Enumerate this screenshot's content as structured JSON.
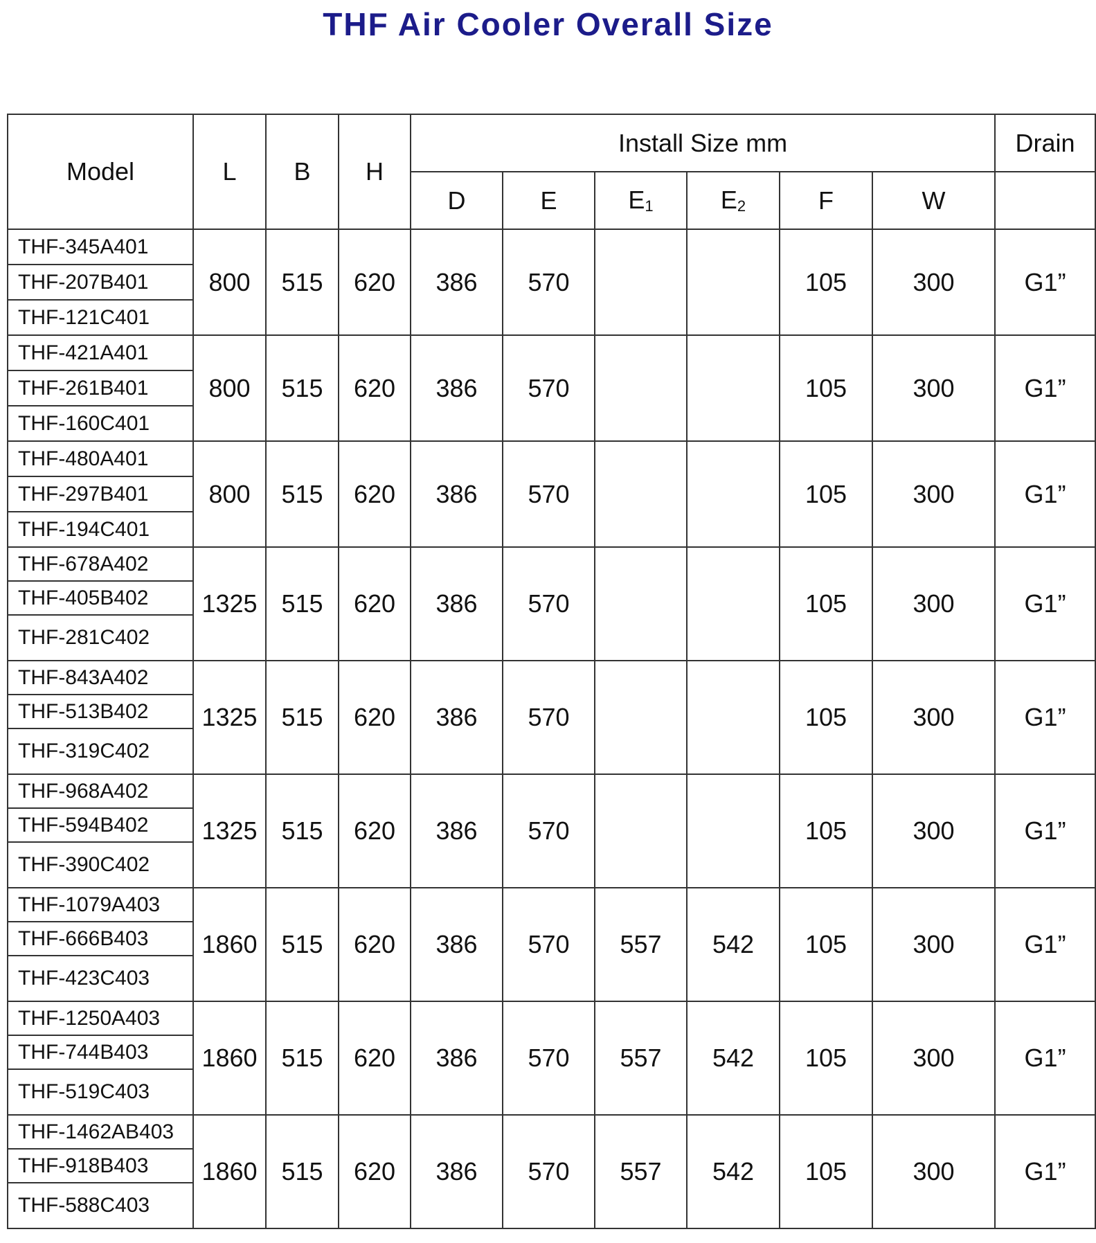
{
  "title": "THF Air Cooler Overall Size",
  "header": {
    "model": "Model",
    "l": "L",
    "b": "B",
    "h": "H",
    "install_size": "Install Size mm",
    "drain": "Drain",
    "sub": [
      {
        "base": "D",
        "sub": ""
      },
      {
        "base": "E",
        "sub": ""
      },
      {
        "base": "E",
        "sub": "1"
      },
      {
        "base": "E",
        "sub": "2"
      },
      {
        "base": "F",
        "sub": ""
      },
      {
        "base": "W",
        "sub": ""
      }
    ]
  },
  "groups": [
    {
      "models": [
        "THF-345A401",
        "THF-207B401",
        "THF-121C401"
      ],
      "L": "800",
      "B": "515",
      "H": "620",
      "D": "386",
      "E": "570",
      "E1": "",
      "E2": "",
      "F": "105",
      "W": "300",
      "Drain": "G1”"
    },
    {
      "models": [
        "THF-421A401",
        "THF-261B401",
        "THF-160C401"
      ],
      "L": "800",
      "B": "515",
      "H": "620",
      "D": "386",
      "E": "570",
      "E1": "",
      "E2": "",
      "F": "105",
      "W": "300",
      "Drain": "G1”"
    },
    {
      "models": [
        "THF-480A401",
        "THF-297B401",
        "THF-194C401"
      ],
      "L": "800",
      "B": "515",
      "H": "620",
      "D": "386",
      "E": "570",
      "E1": "",
      "E2": "",
      "F": "105",
      "W": "300",
      "Drain": "G1”"
    },
    {
      "models": [
        "THF-678A402",
        "THF-405B402",
        "THF-281C402"
      ],
      "L": "1325",
      "B": "515",
      "H": "620",
      "D": "386",
      "E": "570",
      "E1": "",
      "E2": "",
      "F": "105",
      "W": "300",
      "Drain": "G1”"
    },
    {
      "models": [
        "THF-843A402",
        "THF-513B402",
        "THF-319C402"
      ],
      "L": "1325",
      "B": "515",
      "H": "620",
      "D": "386",
      "E": "570",
      "E1": "",
      "E2": "",
      "F": "105",
      "W": "300",
      "Drain": "G1”"
    },
    {
      "models": [
        "THF-968A402",
        "THF-594B402",
        "THF-390C402"
      ],
      "L": "1325",
      "B": "515",
      "H": "620",
      "D": "386",
      "E": "570",
      "E1": "",
      "E2": "",
      "F": "105",
      "W": "300",
      "Drain": "G1”"
    },
    {
      "models": [
        "THF-1079A403",
        "THF-666B403",
        "THF-423C403"
      ],
      "L": "1860",
      "B": "515",
      "H": "620",
      "D": "386",
      "E": "570",
      "E1": "557",
      "E2": "542",
      "F": "105",
      "W": "300",
      "Drain": "G1”"
    },
    {
      "models": [
        "THF-1250A403",
        "THF-744B403",
        "THF-519C403"
      ],
      "L": "1860",
      "B": "515",
      "H": "620",
      "D": "386",
      "E": "570",
      "E1": "557",
      "E2": "542",
      "F": "105",
      "W": "300",
      "Drain": "G1”"
    },
    {
      "models": [
        "THF-1462AB403",
        "THF-918B403",
        "THF-588C403"
      ],
      "L": "1860",
      "B": "515",
      "H": "620",
      "D": "386",
      "E": "570",
      "E1": "557",
      "E2": "542",
      "F": "105",
      "W": "300",
      "Drain": "G1”"
    }
  ]
}
